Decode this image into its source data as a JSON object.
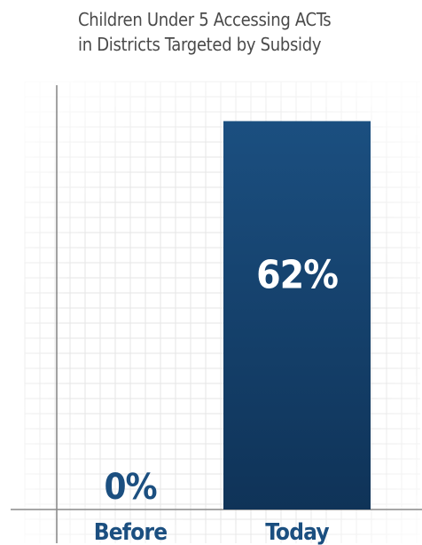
{
  "chart_data": {
    "type": "bar",
    "title": [
      "Children Under 5 Accessing ACTs",
      "in Districts Targeted by Subsidy"
    ],
    "categories": [
      "Before",
      "Today"
    ],
    "values": [
      0,
      62
    ],
    "value_labels": [
      "0%",
      "62%"
    ],
    "ylim": [
      0,
      70
    ],
    "grid": true,
    "colors": {
      "bar_top": "#1b4f80",
      "bar_bottom": "#0f3358",
      "value_label_on_bar": "#ffffff",
      "value_label_off_bar": "#1b4f80",
      "category_label": "#1b4f80",
      "grid": "#e6e6e6",
      "axis": "#8a8a8a"
    }
  }
}
